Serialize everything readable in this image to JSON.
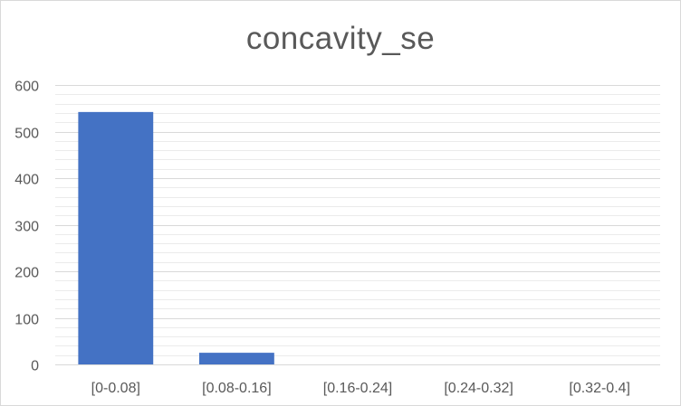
{
  "chart_data": {
    "type": "bar",
    "title": "concavity_se",
    "xlabel": "",
    "ylabel": "",
    "categories": [
      "[0-0.08]",
      "[0.08-0.16]",
      "[0.16-0.24]",
      "[0.24-0.32]",
      "[0.32-0.4]"
    ],
    "values": [
      542,
      25,
      0,
      0,
      0
    ],
    "ylim": [
      0,
      600
    ],
    "y_ticks": [
      0,
      100,
      200,
      300,
      400,
      500,
      600
    ],
    "grid": true,
    "legend": "none",
    "colors": {
      "bar": "#4472c4",
      "major_grid": "#d9d9d9",
      "minor_grid": "#ebebeb",
      "text": "#595959"
    }
  }
}
